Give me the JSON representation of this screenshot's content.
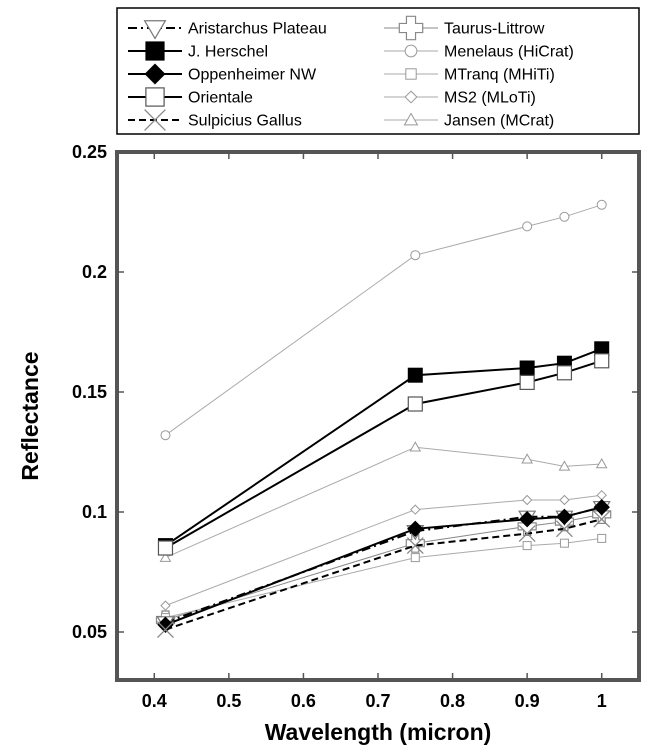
{
  "chart_data": {
    "type": "line",
    "title": "",
    "xlabel": "Wavelength (micron)",
    "ylabel": "Reflectance",
    "xlim": [
      0.35,
      1.05
    ],
    "ylim": [
      0.03,
      0.25
    ],
    "xticks": [
      0.4,
      0.5,
      0.6,
      0.7,
      0.8,
      0.9,
      1
    ],
    "xtick_labels": [
      "0.4",
      "0.5",
      "0.6",
      "0.7",
      "0.8",
      "0.9",
      "1"
    ],
    "yticks": [
      0.05,
      0.1,
      0.15,
      0.2,
      0.25
    ],
    "ytick_labels": [
      "0.05",
      "0.1",
      "0.15",
      "0.2",
      "0.25"
    ],
    "grid": false,
    "legend_position": "top, outside plot",
    "x": [
      0.415,
      0.75,
      0.9,
      0.95,
      1.0
    ],
    "series": [
      {
        "name": "Aristarchus Plateau",
        "values": [
          0.054,
          0.092,
          0.098,
          0.098,
          0.102
        ],
        "marker": "triangle-down",
        "line": "dash-dot",
        "color": "#000000"
      },
      {
        "name": "J. Herschel",
        "values": [
          0.086,
          0.157,
          0.16,
          0.162,
          0.168
        ],
        "marker": "square-filled",
        "line": "solid",
        "color": "#000000"
      },
      {
        "name": "Oppenheimer NW",
        "values": [
          0.053,
          0.093,
          0.097,
          0.098,
          0.102
        ],
        "marker": "diamond-filled",
        "line": "solid",
        "color": "#000000"
      },
      {
        "name": "Orientale",
        "values": [
          0.085,
          0.145,
          0.154,
          0.158,
          0.163
        ],
        "marker": "square-open",
        "line": "solid",
        "color": "#000000"
      },
      {
        "name": "Sulpicius Gallus",
        "values": [
          0.051,
          0.086,
          0.091,
          0.093,
          0.097
        ],
        "marker": "x",
        "line": "dashed",
        "color": "#000000"
      },
      {
        "name": "Taurus-Littrow",
        "values": [
          0.055,
          0.087,
          0.094,
          0.096,
          0.099
        ],
        "marker": "cross-open",
        "line": "solid",
        "color": "#888888"
      },
      {
        "name": "Menelaus (HiCrat)",
        "values": [
          0.132,
          0.207,
          0.219,
          0.223,
          0.228
        ],
        "marker": "circle-open",
        "line": "solid",
        "color": "#aaaaaa"
      },
      {
        "name": "MTranq (MHiTi)",
        "values": [
          0.056,
          0.081,
          0.086,
          0.087,
          0.089
        ],
        "marker": "square-small",
        "line": "solid",
        "color": "#aaaaaa"
      },
      {
        "name": "MS2 (MLoTi)",
        "values": [
          0.061,
          0.101,
          0.105,
          0.105,
          0.107
        ],
        "marker": "diamond-small",
        "line": "solid",
        "color": "#aaaaaa"
      },
      {
        "name": "Jansen (MCrat)",
        "values": [
          0.081,
          0.127,
          0.122,
          0.119,
          0.12
        ],
        "marker": "triangle-small",
        "line": "solid",
        "color": "#aaaaaa"
      }
    ]
  }
}
